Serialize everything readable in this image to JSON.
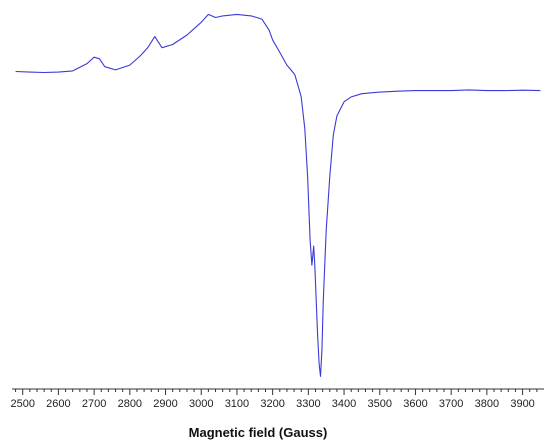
{
  "chart_data": {
    "type": "line",
    "xlabel": "Magnetic field (Gauss)",
    "ylabel": "",
    "title": "",
    "xlim": [
      2470,
      3960
    ],
    "ylim": [
      -1.0,
      0.2
    ],
    "x_ticks": [
      2500,
      2600,
      2700,
      2800,
      2900,
      3000,
      3100,
      3200,
      3300,
      3400,
      3500,
      3600,
      3700,
      3800,
      3900
    ],
    "grid": false,
    "legend": "none",
    "series": [
      {
        "color": "#3a3ad8",
        "x": [
          2480,
          2520,
          2560,
          2600,
          2640,
          2680,
          2700,
          2715,
          2730,
          2760,
          2800,
          2830,
          2850,
          2870,
          2890,
          2920,
          2960,
          3000,
          3020,
          3040,
          3060,
          3100,
          3140,
          3170,
          3190,
          3200,
          3220,
          3240,
          3255,
          3262,
          3270,
          3280,
          3290,
          3298,
          3305,
          3310,
          3315,
          3318,
          3322,
          3326,
          3330,
          3334,
          3338,
          3342,
          3350,
          3360,
          3370,
          3380,
          3400,
          3420,
          3450,
          3500,
          3550,
          3600,
          3650,
          3700,
          3750,
          3800,
          3850,
          3900,
          3950
        ],
        "y": [
          0.0,
          -0.002,
          -0.003,
          -0.002,
          0.002,
          0.025,
          0.045,
          0.04,
          0.015,
          0.005,
          0.02,
          0.05,
          0.075,
          0.11,
          0.075,
          0.085,
          0.115,
          0.155,
          0.18,
          0.17,
          0.175,
          0.18,
          0.175,
          0.165,
          0.13,
          0.1,
          0.06,
          0.02,
          0.0,
          -0.01,
          -0.04,
          -0.08,
          -0.18,
          -0.33,
          -0.53,
          -0.61,
          -0.55,
          -0.61,
          -0.72,
          -0.83,
          -0.92,
          -0.96,
          -0.88,
          -0.72,
          -0.5,
          -0.33,
          -0.2,
          -0.14,
          -0.095,
          -0.08,
          -0.07,
          -0.065,
          -0.062,
          -0.06,
          -0.06,
          -0.06,
          -0.058,
          -0.06,
          -0.06,
          -0.059,
          -0.06
        ]
      }
    ]
  }
}
